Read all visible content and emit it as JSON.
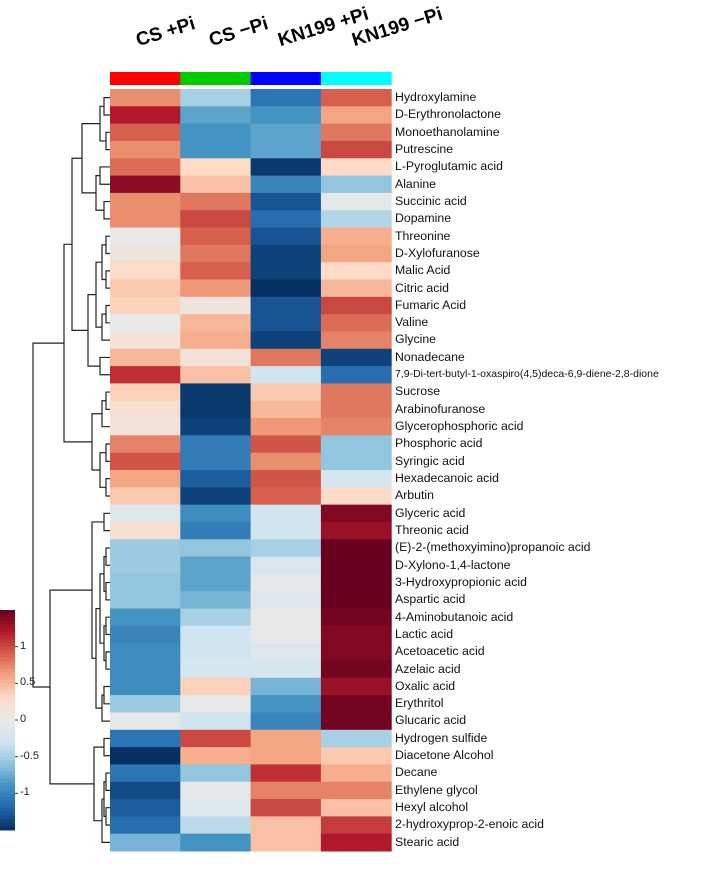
{
  "chart_data": {
    "type": "heatmap",
    "title": "",
    "columns": [
      "CS +Pi",
      "CS −Pi",
      "KN199 +Pi",
      "KN199 −Pi"
    ],
    "column_colors": [
      "#ff0000",
      "#00cc00",
      "#0000ff",
      "#00ffff"
    ],
    "rows": [
      "Hydroxylamine",
      "D-Erythronolactone",
      "Monoethanolamine",
      "Putrescine",
      "L-Pyroglutamic acid",
      "Alanine",
      "Succinic acid",
      "Dopamine",
      "Threonine",
      "D-Xylofuranose",
      "Malic Acid",
      "Citric acid",
      "Fumaric Acid",
      "Valine",
      "Glycine",
      "Nonadecane",
      "7,9-Di-tert-butyl-1-oxaspiro(4,5)deca-6,9-diene-2,8-dione",
      "Sucrose",
      "Arabinofuranose",
      "Glycerophosphoric acid",
      "Phosphoric acid",
      "Syringic acid",
      "Hexadecanoic acid",
      "Arbutin",
      "Glyceric acid",
      "Threonic acid",
      "(E)-2-(methoxyimino)propanoic acid",
      "D-Xylono-1,4-lactone",
      "3-Hydroxypropionic acid",
      "Aspartic acid",
      "4-Aminobutanoic acid",
      "Lactic acid",
      "Acetoacetic acid",
      "Azelaic acid",
      "Oxalic acid",
      "Erythritol",
      "Glucaric acid",
      "Hydrogen sulfide",
      "Diacetone Alcohol",
      "Decane",
      "Ethylene glycol",
      "Hexyl alcohol",
      "2-hydroxyprop-2-enoic acid",
      "Stearic acid"
    ],
    "values": [
      [
        0.7,
        -0.5,
        -1.1,
        0.9
      ],
      [
        1.2,
        -0.8,
        -0.9,
        0.6
      ],
      [
        0.9,
        -0.9,
        -0.8,
        0.8
      ],
      [
        0.7,
        -0.9,
        -0.8,
        1.0
      ],
      [
        0.85,
        0.3,
        -1.45,
        0.3
      ],
      [
        1.35,
        0.45,
        -1.0,
        -0.6
      ],
      [
        0.7,
        0.8,
        -1.3,
        -0.05
      ],
      [
        0.7,
        1.0,
        -1.15,
        -0.45
      ],
      [
        0.0,
        0.9,
        -1.3,
        0.55
      ],
      [
        0.1,
        0.8,
        -1.4,
        0.6
      ],
      [
        0.3,
        0.9,
        -1.4,
        0.3
      ],
      [
        0.4,
        0.65,
        -1.5,
        0.5
      ],
      [
        0.35,
        0.1,
        -1.3,
        1.0
      ],
      [
        0.0,
        0.5,
        -1.3,
        0.85
      ],
      [
        0.15,
        0.55,
        -1.4,
        0.75
      ],
      [
        0.5,
        0.15,
        0.8,
        -1.4
      ],
      [
        1.1,
        0.45,
        -0.3,
        -1.15
      ],
      [
        0.35,
        -1.45,
        0.4,
        0.8
      ],
      [
        0.2,
        -1.45,
        0.5,
        0.8
      ],
      [
        0.15,
        -1.4,
        0.65,
        0.75
      ],
      [
        0.75,
        -1.05,
        0.95,
        -0.6
      ],
      [
        0.95,
        -1.05,
        0.7,
        -0.6
      ],
      [
        0.6,
        -1.25,
        0.95,
        -0.25
      ],
      [
        0.4,
        -1.4,
        0.9,
        0.3
      ],
      [
        -0.1,
        -0.95,
        -0.3,
        1.4
      ],
      [
        0.2,
        -1.05,
        -0.3,
        1.3
      ],
      [
        -0.55,
        -0.6,
        -0.5,
        1.5
      ],
      [
        -0.55,
        -0.8,
        -0.2,
        1.5
      ],
      [
        -0.6,
        -0.8,
        -0.05,
        1.5
      ],
      [
        -0.6,
        -0.7,
        -0.1,
        1.5
      ],
      [
        -0.9,
        -0.5,
        0.0,
        1.45
      ],
      [
        -1.0,
        -0.3,
        0.0,
        1.4
      ],
      [
        -0.95,
        -0.3,
        -0.15,
        1.4
      ],
      [
        -0.95,
        -0.25,
        -0.25,
        1.45
      ],
      [
        -0.95,
        0.35,
        -0.7,
        1.3
      ],
      [
        -0.55,
        0.0,
        -0.9,
        1.45
      ],
      [
        -0.05,
        -0.3,
        -1.0,
        1.45
      ],
      [
        -1.1,
        1.0,
        0.6,
        -0.5
      ],
      [
        -1.5,
        0.55,
        0.6,
        0.4
      ],
      [
        -1.1,
        -0.6,
        1.1,
        0.55
      ],
      [
        -1.35,
        -0.05,
        0.75,
        0.75
      ],
      [
        -1.25,
        -0.15,
        1.0,
        0.45
      ],
      [
        -1.15,
        -0.4,
        0.45,
        1.05
      ],
      [
        -0.7,
        -0.9,
        0.45,
        1.2
      ]
    ],
    "color_scale": {
      "min": -1.5,
      "max": 1.5,
      "ticks": [
        "1",
        "0.5",
        "0",
        "-0.5",
        "-1"
      ],
      "tick_values": [
        1,
        0.5,
        0,
        -0.5,
        -1
      ],
      "palette": [
        "#053061",
        "#2166ac",
        "#4393c3",
        "#92c5de",
        "#d1e5f0",
        "#e8e8e8",
        "#fddbc7",
        "#f4a582",
        "#d6604d",
        "#b2182b",
        "#67001f"
      ]
    },
    "legend": "left-bottom",
    "xlabel": "",
    "ylabel": ""
  }
}
